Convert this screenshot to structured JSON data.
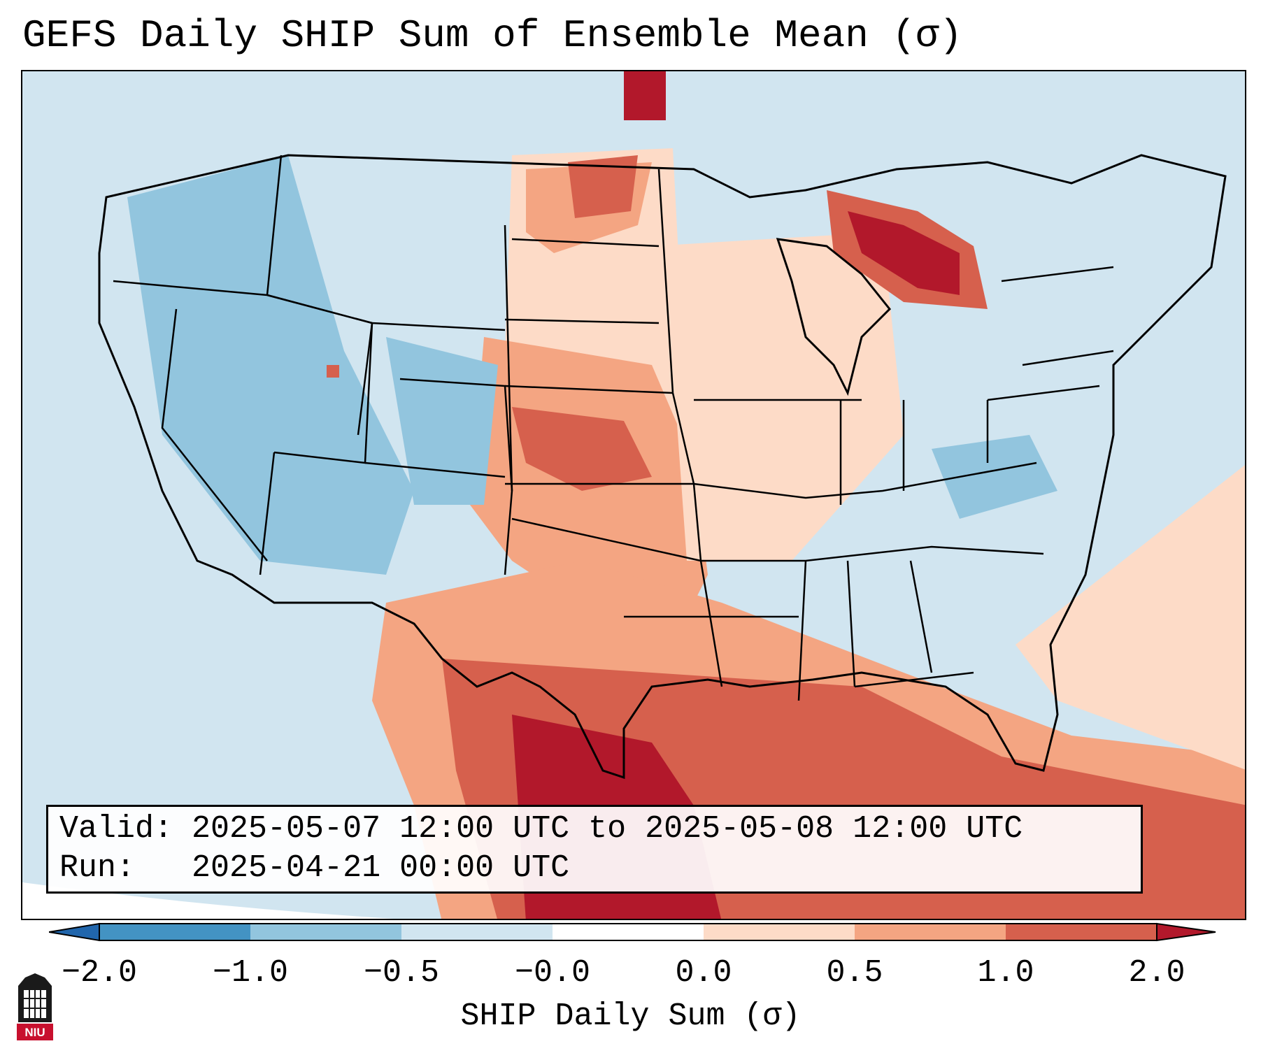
{
  "title": "GEFS Daily SHIP Sum of Ensemble Mean (σ)",
  "info": {
    "valid_line": "Valid: 2025-05-07 12:00 UTC to 2025-05-08 12:00 UTC",
    "run_line": "Run:   2025-04-21 00:00 UTC"
  },
  "colorbar": {
    "label": "SHIP Daily Sum (σ)",
    "ticks": [
      "−2.0",
      "−1.0",
      "−0.5",
      "−0.0",
      "0.0",
      "0.5",
      "1.0",
      "2.0"
    ],
    "colors": [
      "#4393c3",
      "#92c5de",
      "#d1e5f0",
      "#ffffff",
      "#fddbc7",
      "#f4a582",
      "#d6604d",
      "#b2182b"
    ],
    "extend_min_color": "#2166ac",
    "extend_max_color": "#b2182b"
  },
  "map": {
    "background_color": "#d1e5f0",
    "region": "Contiguous United States",
    "outline_color": "#000000"
  },
  "logo": {
    "text": "NIU",
    "color": "#c8102e"
  }
}
